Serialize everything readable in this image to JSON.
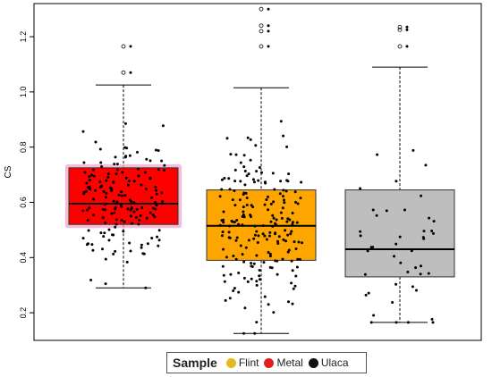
{
  "chart_data": {
    "type": "box",
    "ylabel": "CS",
    "xlabel": "",
    "ylim": [
      0.1,
      1.32
    ],
    "yticks": [
      0.2,
      0.4,
      0.6,
      0.8,
      1.0,
      1.2
    ],
    "ytick_labels": [
      "0.2",
      "0.4",
      "0.6",
      "0.8",
      "1.0",
      "1.2"
    ],
    "series": [
      {
        "name": "Flint",
        "whisker_low": 0.29,
        "q1": 0.52,
        "median": 0.595,
        "q3": 0.725,
        "whisker_high": 1.025,
        "outliers": [
          1.07,
          1.165
        ],
        "n_points": 160
      },
      {
        "name": "Metal",
        "whisker_low": 0.125,
        "q1": 0.39,
        "median": 0.515,
        "q3": 0.645,
        "whisker_high": 1.015,
        "outliers": [
          1.165,
          1.22,
          1.24,
          1.3
        ],
        "n_points": 200
      },
      {
        "name": "Ulaca",
        "whisker_low": 0.165,
        "q1": 0.33,
        "median": 0.43,
        "q3": 0.645,
        "whisker_high": 1.09,
        "outliers": [
          1.165,
          1.225,
          1.235
        ],
        "n_points": 45
      }
    ]
  },
  "legend": {
    "title": "Sample",
    "items": [
      {
        "label": "Flint",
        "color": "#E6B820"
      },
      {
        "label": "Metal",
        "color": "#E0201E"
      },
      {
        "label": "Ulaca",
        "color": "#111111"
      }
    ]
  },
  "colors": {
    "box_fills": [
      "#FF0000",
      "#FFA500",
      "#BEBEBE"
    ],
    "flint_glow": "#F0A0C8"
  }
}
